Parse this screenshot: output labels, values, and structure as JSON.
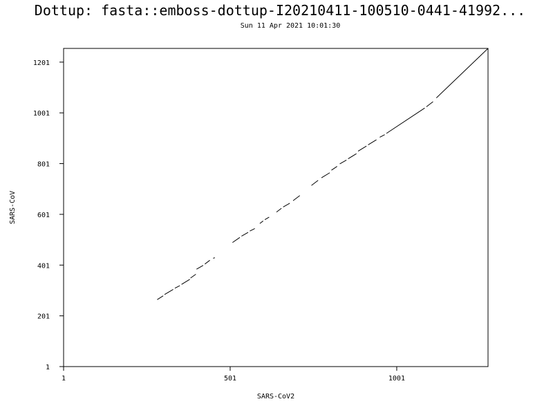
{
  "chart_data": {
    "type": "line",
    "title": "Dottup: fasta::emboss-dottup-I20210411-100510-0441-41992...",
    "subtitle": "Sun 11 Apr 2021 10:01:30",
    "xlabel": "SARS-CoV2",
    "ylabel": "SARS-CoV",
    "xlim": [
      1,
      1275
    ],
    "ylim": [
      1,
      1255
    ],
    "x_ticks": [
      1,
      501,
      1001
    ],
    "y_ticks": [
      1,
      201,
      401,
      601,
      801,
      1001,
      1201
    ],
    "x_tick_labels": [
      "1",
      "501",
      "1001"
    ],
    "y_tick_labels": [
      "1",
      "201",
      "401",
      "601",
      "801",
      "1001",
      "1201"
    ],
    "grid": false,
    "line_color": "#000000",
    "series": [
      {
        "segments": [
          {
            "x": [
              282,
              300
            ],
            "y": [
              265,
              280
            ]
          },
          {
            "x": [
              304,
              330
            ],
            "y": [
              285,
              305
            ]
          },
          {
            "x": [
              335,
              350
            ],
            "y": [
              310,
              320
            ]
          },
          {
            "x": [
              355,
              380
            ],
            "y": [
              325,
              345
            ]
          },
          {
            "x": [
              382,
              398
            ],
            "y": [
              350,
              365
            ]
          },
          {
            "x": [
              400,
              420
            ],
            "y": [
              385,
              400
            ]
          },
          {
            "x": [
              425,
              440
            ],
            "y": [
              405,
              420
            ]
          },
          {
            "x": [
              450,
              455
            ],
            "y": [
              428,
              430
            ]
          },
          {
            "x": [
              508,
              530
            ],
            "y": [
              490,
              510
            ]
          },
          {
            "x": [
              535,
              555
            ],
            "y": [
              515,
              530
            ]
          },
          {
            "x": [
              560,
              575
            ],
            "y": [
              535,
              545
            ]
          },
          {
            "x": [
              590,
              600
            ],
            "y": [
              565,
              575
            ]
          },
          {
            "x": [
              605,
              618
            ],
            "y": [
              580,
              590
            ]
          },
          {
            "x": [
              640,
              655
            ],
            "y": [
              610,
              625
            ]
          },
          {
            "x": [
              660,
              680
            ],
            "y": [
              630,
              645
            ]
          },
          {
            "x": [
              690,
              710
            ],
            "y": [
              655,
              675
            ]
          },
          {
            "x": [
              745,
              765
            ],
            "y": [
              715,
              735
            ]
          },
          {
            "x": [
              775,
              800
            ],
            "y": [
              745,
              765
            ]
          },
          {
            "x": [
              805,
              822
            ],
            "y": [
              775,
              790
            ]
          },
          {
            "x": [
              830,
              850
            ],
            "y": [
              800,
              815
            ]
          },
          {
            "x": [
              855,
              880
            ],
            "y": [
              820,
              840
            ]
          },
          {
            "x": [
              885,
              910
            ],
            "y": [
              850,
              870
            ]
          },
          {
            "x": [
              915,
              940
            ],
            "y": [
              875,
              895
            ]
          },
          {
            "x": [
              950,
              965
            ],
            "y": [
              905,
              915
            ]
          },
          {
            "x": [
              970,
              1085
            ],
            "y": [
              920,
              1020
            ]
          },
          {
            "x": [
              1090,
              1110
            ],
            "y": [
              1025,
              1045
            ]
          },
          {
            "x": [
              1120,
              1275
            ],
            "y": [
              1060,
              1255
            ]
          }
        ]
      }
    ]
  }
}
